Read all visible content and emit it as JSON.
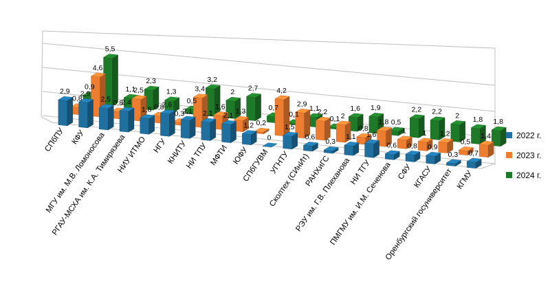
{
  "chart_data": {
    "type": "bar",
    "categories": [
      "СПбПУ",
      "КФУ",
      "МГУ им. М.В. Ломоносова",
      "РГАУ-МСХА им. К.А. Тимирязева",
      "НИУ ИТМО",
      "НГУ",
      "КНИТУ",
      "НИ ТПУ",
      "МФТИ",
      "ЮФУ",
      "СПбГУВМ",
      "УГНТУ",
      "Сколтех (СИнИт)",
      "РАНХиГС",
      "РЭУ им. Г.В. Плеханова",
      "НИ ТГУ",
      "ПМГМУ им. И.М. Сеченова",
      "СФУ",
      "КГАСУ",
      "Оренбургский госуниверситет",
      "КГМУ"
    ],
    "series": [
      {
        "name": "2022 г.",
        "color": "#1f6f9f",
        "values": [
          2.9,
          2.9,
          2.5,
          2.4,
          1.8,
          2.6,
          2.1,
          2.1,
          2.1,
          1.2,
          0.0,
          1.5,
          0.6,
          0.3,
          1.1,
          1.6,
          0.6,
          0.8,
          0.9,
          0.3,
          0.7
        ],
        "labels": [
          "2,9",
          "2,9",
          "2,5",
          "2,4",
          "1,8",
          "2,6",
          "2,1",
          "2,1",
          "2,1",
          "1,2",
          "0",
          "1,5",
          "0,6",
          "0,3",
          "1,1",
          "1,6",
          "0,6",
          "0,8",
          "0,9",
          "0,3",
          "0,7"
        ]
      },
      {
        "name": "2023 г.",
        "color": "#ed7d31",
        "values": [
          0.8,
          4.6,
          0.8,
          2.5,
          0.8,
          0.3,
          3.4,
          1.6,
          1.3,
          0.2,
          4.2,
          2.9,
          2.2,
          2.0,
          0.8,
          1.8,
          1.0,
          1.0,
          1.2,
          0.5,
          1.4
        ],
        "labels": [
          "0,8",
          "4,6",
          "0,8",
          "2,5",
          "0,8",
          "0,3",
          "3,4",
          "1,6",
          "1,3",
          "0,2",
          "4,2",
          "2,9",
          "2,2",
          "2",
          "0,8",
          "1,8",
          "1",
          "1",
          "1,2",
          "0,5",
          "1,4"
        ]
      },
      {
        "name": "2024 г.",
        "color": "#1e7a28",
        "values": [
          0.9,
          5.5,
          1.1,
          2.3,
          1.3,
          0.5,
          3.2,
          2.0,
          2.7,
          0.7,
          0.1,
          1.1,
          0.1,
          1.6,
          1.9,
          0.5,
          2.2,
          2.2,
          2.0,
          1.8,
          1.8
        ],
        "labels": [
          "0,9",
          "5,5",
          "1,1",
          "2,3",
          "1,3",
          "0,5",
          "3,2",
          "2",
          "2,7",
          "0,7",
          "0,1",
          "1,1",
          "0,1",
          "1,6",
          "1,9",
          "0,5",
          "2,2",
          "2,2",
          "2",
          "1,8",
          "1,8"
        ]
      }
    ],
    "ylim": [
      0,
      6
    ],
    "grid": true,
    "legend": "right"
  }
}
